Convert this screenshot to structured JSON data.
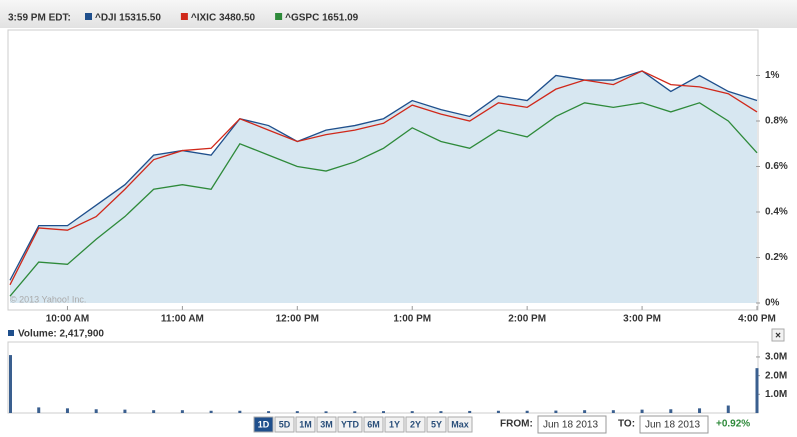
{
  "header": {
    "time": "3:59 PM EDT:"
  },
  "chart_data": [
    {
      "type": "line",
      "x": [
        "9:30 AM",
        "9:45 AM",
        "10:00 AM",
        "10:15 AM",
        "10:30 AM",
        "10:45 AM",
        "11:00 AM",
        "11:15 AM",
        "11:30 AM",
        "11:45 AM",
        "12:00 PM",
        "12:15 PM",
        "12:30 PM",
        "12:45 PM",
        "1:00 PM",
        "1:15 PM",
        "1:30 PM",
        "1:45 PM",
        "2:00 PM",
        "2:15 PM",
        "2:30 PM",
        "2:45 PM",
        "3:00 PM",
        "3:15 PM",
        "3:30 PM",
        "3:45 PM",
        "4:00 PM"
      ],
      "series": [
        {
          "name": "^DJI 15315.50",
          "color": "#1f4f8c",
          "area": true,
          "values": [
            0.1,
            0.34,
            0.34,
            0.43,
            0.52,
            0.65,
            0.67,
            0.65,
            0.81,
            0.78,
            0.71,
            0.76,
            0.78,
            0.81,
            0.89,
            0.85,
            0.82,
            0.91,
            0.89,
            1.0,
            0.98,
            0.98,
            1.02,
            0.93,
            1.0,
            0.93,
            0.89
          ]
        },
        {
          "name": "^IXIC 3480.50",
          "color": "#d0281a",
          "values": [
            0.08,
            0.33,
            0.32,
            0.38,
            0.5,
            0.63,
            0.67,
            0.68,
            0.81,
            0.76,
            0.71,
            0.74,
            0.76,
            0.79,
            0.87,
            0.83,
            0.8,
            0.88,
            0.86,
            0.94,
            0.98,
            0.96,
            1.02,
            0.96,
            0.95,
            0.92,
            0.84
          ]
        },
        {
          "name": "^GSPC 1651.09",
          "color": "#2e8a3a",
          "values": [
            0.03,
            0.18,
            0.17,
            0.28,
            0.38,
            0.5,
            0.52,
            0.5,
            0.7,
            0.65,
            0.6,
            0.58,
            0.62,
            0.68,
            0.77,
            0.71,
            0.68,
            0.76,
            0.73,
            0.82,
            0.88,
            0.86,
            0.88,
            0.84,
            0.88,
            0.8,
            0.66
          ]
        }
      ],
      "xticks": [
        "10:00 AM",
        "11:00 AM",
        "12:00 PM",
        "1:00 PM",
        "2:00 PM",
        "3:00 PM",
        "4:00 PM"
      ],
      "ylim": [
        0,
        1.2
      ],
      "yticks": [
        {
          "value": 0,
          "label": "0%"
        },
        {
          "value": 0.2,
          "label": "0.2%"
        },
        {
          "value": 0.4,
          "label": "0.4%"
        },
        {
          "value": 0.6,
          "label": "0.6%"
        },
        {
          "value": 0.8,
          "label": "0.8%"
        },
        {
          "value": 1,
          "label": "1%"
        }
      ],
      "annotation": "© 2013 Yahoo! Inc."
    },
    {
      "type": "bar",
      "title": "Volume: 2,417,900",
      "color": "#3a5f8f",
      "values": [
        3100000,
        300000,
        250000,
        200000,
        180000,
        150000,
        150000,
        120000,
        120000,
        100000,
        100000,
        90000,
        90000,
        100000,
        100000,
        100000,
        110000,
        120000,
        120000,
        130000,
        150000,
        150000,
        180000,
        200000,
        250000,
        400000,
        2400000
      ],
      "ylim": [
        0,
        3800000
      ],
      "yticks": [
        {
          "value": 1000000,
          "label": "1.0M"
        },
        {
          "value": 2000000,
          "label": "2.0M"
        },
        {
          "value": 3000000,
          "label": "3.0M"
        }
      ]
    }
  ],
  "controls": {
    "ranges": [
      "1D",
      "5D",
      "1M",
      "3M",
      "YTD",
      "6M",
      "1Y",
      "2Y",
      "5Y",
      "Max"
    ],
    "active": 0,
    "from_label": "FROM:",
    "from": "Jun 18 2013",
    "to_label": "TO:",
    "to": "Jun 18 2013",
    "change": "+0.92%"
  }
}
